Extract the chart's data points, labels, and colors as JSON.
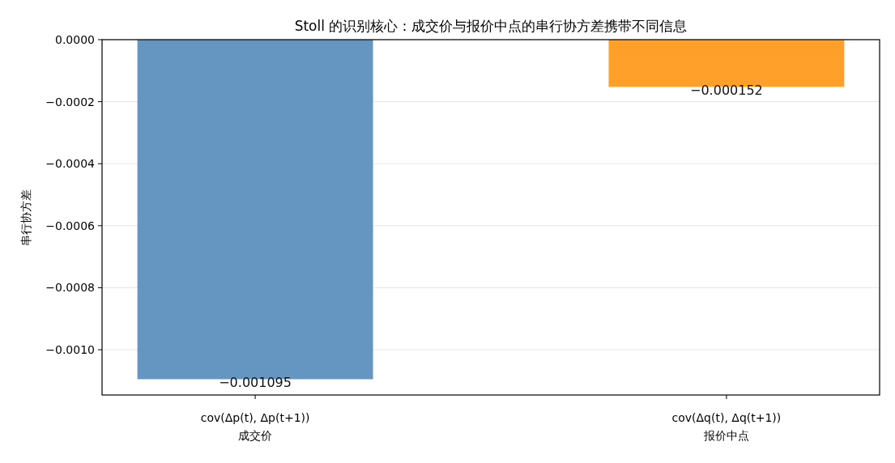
{
  "chart_data": {
    "type": "bar",
    "title": "Stoll 的识别核心：成交价与报价中点的串行协方差携带不同信息",
    "ylabel": "串行协方差",
    "categories": [
      "cov(Δp(t), Δp(t+1))\n成交价",
      "cov(Δq(t), Δq(t+1))\n报价中点"
    ],
    "values": [
      -0.001095,
      -0.000152
    ],
    "colors": [
      "#6595c1",
      "#ffa02a"
    ],
    "value_labels": [
      "−0.001095",
      "−0.000152"
    ],
    "ylim": [
      -0.001146,
      0
    ],
    "yticks": [
      {
        "value": 0,
        "label": "0.0000"
      },
      {
        "value": -0.0002,
        "label": "−0.0002"
      },
      {
        "value": -0.0004,
        "label": "−0.0004"
      },
      {
        "value": -0.0006,
        "label": "−0.0006"
      },
      {
        "value": -0.0008,
        "label": "−0.0008"
      },
      {
        "value": -0.001,
        "label": "−0.0010"
      }
    ],
    "grid": "y"
  }
}
